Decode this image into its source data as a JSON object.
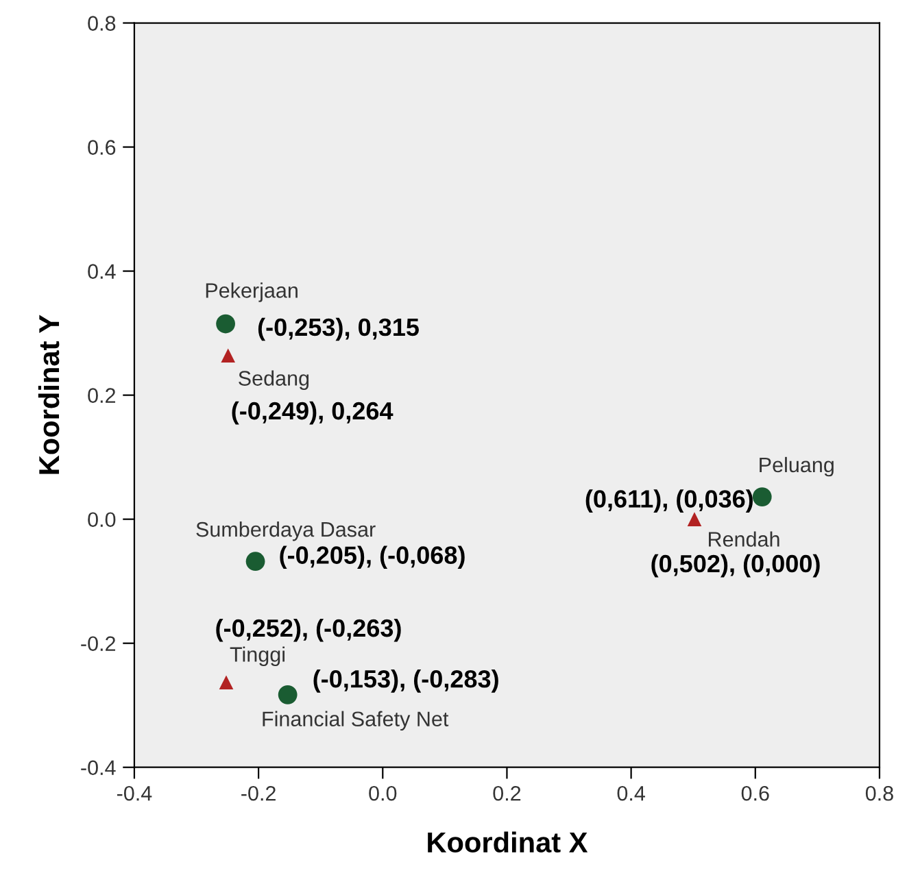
{
  "chart_data": {
    "type": "scatter",
    "xlabel": "Koordinat X",
    "ylabel": "Koordinat Y",
    "xlim": [
      -0.4,
      0.8
    ],
    "xticks": [
      {
        "value": -0.4,
        "label": "-0.4"
      },
      {
        "value": -0.2,
        "label": "-0.2"
      },
      {
        "value": 0.0,
        "label": "0.0"
      },
      {
        "value": 0.2,
        "label": "0.2"
      },
      {
        "value": 0.4,
        "label": "0.4"
      },
      {
        "value": 0.6,
        "label": "0.6"
      },
      {
        "value": 0.8,
        "label": "0.8"
      }
    ],
    "ylim": [
      -0.4,
      0.8
    ],
    "yticks": [
      {
        "value": -0.4,
        "label": "-0.4"
      },
      {
        "value": -0.2,
        "label": "-0.2"
      },
      {
        "value": 0.0,
        "label": "0.0"
      },
      {
        "value": 0.2,
        "label": "0.2"
      },
      {
        "value": 0.4,
        "label": "0.4"
      },
      {
        "value": 0.6,
        "label": "0.6"
      },
      {
        "value": 0.8,
        "label": "0.8"
      }
    ],
    "grid": false,
    "legend": false,
    "series": [
      {
        "color": "#1a5c32",
        "marker": "circle",
        "x": [
          -0.253,
          -0.205,
          -0.153,
          0.611
        ],
        "values": [
          0.315,
          -0.068,
          -0.283,
          0.036
        ],
        "value_labels": [
          "(-0,253), 0,315",
          "(-0,205), (-0,068)",
          "(-0,153), (-0,283)",
          "(0,611), (0,036)"
        ]
      },
      {
        "color": "#b22222",
        "marker": "triangle",
        "x": [
          -0.249,
          0.502,
          -0.252
        ],
        "values": [
          0.264,
          0.0,
          -0.263
        ],
        "value_labels": [
          "(-0,249), 0,264",
          "(0,502), (0,000)",
          "(-0,252), (-0,263)"
        ]
      }
    ],
    "annotations": [
      {
        "text": "Pekerjaan",
        "x": -0.253,
        "y": 0.315
      },
      {
        "text": "Sumberdaya Dasar",
        "x": -0.205,
        "y": -0.068
      },
      {
        "text": "Financial Safety Net",
        "x": -0.153,
        "y": -0.283
      },
      {
        "text": "Peluang",
        "x": 0.611,
        "y": 0.036
      },
      {
        "text": "Sedang",
        "x": -0.249,
        "y": 0.264
      },
      {
        "text": "Rendah",
        "x": 0.502,
        "y": 0.0
      },
      {
        "text": "Tinggi",
        "x": -0.252,
        "y": -0.263
      }
    ]
  }
}
